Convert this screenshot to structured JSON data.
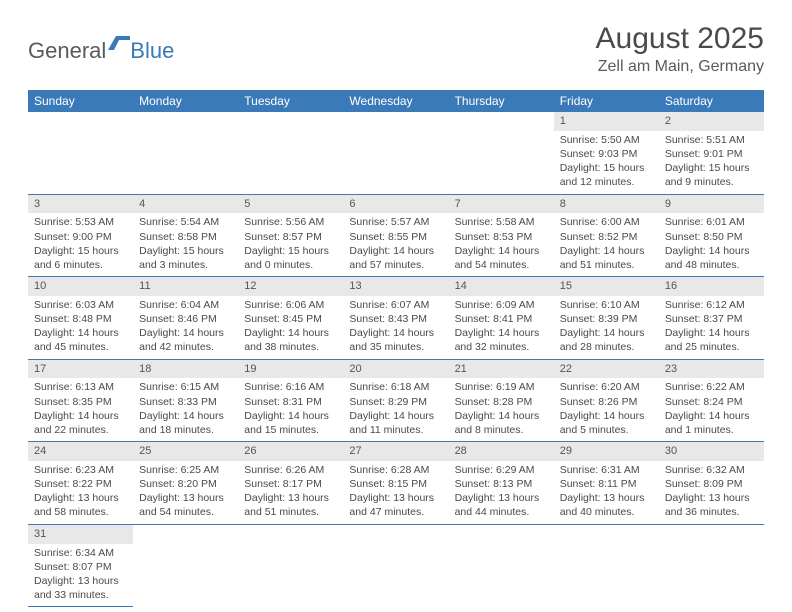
{
  "logo": {
    "text_gray": "General",
    "text_blue": "Blue"
  },
  "title": "August 2025",
  "location": "Zell am Main, Germany",
  "colors": {
    "header_bg": "#3a7ab8",
    "header_text": "#ffffff",
    "daynum_bg": "#e8e8e8",
    "row_border": "#3a7ab8",
    "body_text": "#4a4a4a"
  },
  "weekdays": [
    "Sunday",
    "Monday",
    "Tuesday",
    "Wednesday",
    "Thursday",
    "Friday",
    "Saturday"
  ],
  "first_weekday_index": 5,
  "days": [
    {
      "n": 1,
      "sunrise": "5:50 AM",
      "sunset": "9:03 PM",
      "dl_h": 15,
      "dl_m": 12
    },
    {
      "n": 2,
      "sunrise": "5:51 AM",
      "sunset": "9:01 PM",
      "dl_h": 15,
      "dl_m": 9
    },
    {
      "n": 3,
      "sunrise": "5:53 AM",
      "sunset": "9:00 PM",
      "dl_h": 15,
      "dl_m": 6
    },
    {
      "n": 4,
      "sunrise": "5:54 AM",
      "sunset": "8:58 PM",
      "dl_h": 15,
      "dl_m": 3
    },
    {
      "n": 5,
      "sunrise": "5:56 AM",
      "sunset": "8:57 PM",
      "dl_h": 15,
      "dl_m": 0
    },
    {
      "n": 6,
      "sunrise": "5:57 AM",
      "sunset": "8:55 PM",
      "dl_h": 14,
      "dl_m": 57
    },
    {
      "n": 7,
      "sunrise": "5:58 AM",
      "sunset": "8:53 PM",
      "dl_h": 14,
      "dl_m": 54
    },
    {
      "n": 8,
      "sunrise": "6:00 AM",
      "sunset": "8:52 PM",
      "dl_h": 14,
      "dl_m": 51
    },
    {
      "n": 9,
      "sunrise": "6:01 AM",
      "sunset": "8:50 PM",
      "dl_h": 14,
      "dl_m": 48
    },
    {
      "n": 10,
      "sunrise": "6:03 AM",
      "sunset": "8:48 PM",
      "dl_h": 14,
      "dl_m": 45
    },
    {
      "n": 11,
      "sunrise": "6:04 AM",
      "sunset": "8:46 PM",
      "dl_h": 14,
      "dl_m": 42
    },
    {
      "n": 12,
      "sunrise": "6:06 AM",
      "sunset": "8:45 PM",
      "dl_h": 14,
      "dl_m": 38
    },
    {
      "n": 13,
      "sunrise": "6:07 AM",
      "sunset": "8:43 PM",
      "dl_h": 14,
      "dl_m": 35
    },
    {
      "n": 14,
      "sunrise": "6:09 AM",
      "sunset": "8:41 PM",
      "dl_h": 14,
      "dl_m": 32
    },
    {
      "n": 15,
      "sunrise": "6:10 AM",
      "sunset": "8:39 PM",
      "dl_h": 14,
      "dl_m": 28
    },
    {
      "n": 16,
      "sunrise": "6:12 AM",
      "sunset": "8:37 PM",
      "dl_h": 14,
      "dl_m": 25
    },
    {
      "n": 17,
      "sunrise": "6:13 AM",
      "sunset": "8:35 PM",
      "dl_h": 14,
      "dl_m": 22
    },
    {
      "n": 18,
      "sunrise": "6:15 AM",
      "sunset": "8:33 PM",
      "dl_h": 14,
      "dl_m": 18
    },
    {
      "n": 19,
      "sunrise": "6:16 AM",
      "sunset": "8:31 PM",
      "dl_h": 14,
      "dl_m": 15
    },
    {
      "n": 20,
      "sunrise": "6:18 AM",
      "sunset": "8:29 PM",
      "dl_h": 14,
      "dl_m": 11
    },
    {
      "n": 21,
      "sunrise": "6:19 AM",
      "sunset": "8:28 PM",
      "dl_h": 14,
      "dl_m": 8
    },
    {
      "n": 22,
      "sunrise": "6:20 AM",
      "sunset": "8:26 PM",
      "dl_h": 14,
      "dl_m": 5
    },
    {
      "n": 23,
      "sunrise": "6:22 AM",
      "sunset": "8:24 PM",
      "dl_h": 14,
      "dl_m": 1
    },
    {
      "n": 24,
      "sunrise": "6:23 AM",
      "sunset": "8:22 PM",
      "dl_h": 13,
      "dl_m": 58
    },
    {
      "n": 25,
      "sunrise": "6:25 AM",
      "sunset": "8:20 PM",
      "dl_h": 13,
      "dl_m": 54
    },
    {
      "n": 26,
      "sunrise": "6:26 AM",
      "sunset": "8:17 PM",
      "dl_h": 13,
      "dl_m": 51
    },
    {
      "n": 27,
      "sunrise": "6:28 AM",
      "sunset": "8:15 PM",
      "dl_h": 13,
      "dl_m": 47
    },
    {
      "n": 28,
      "sunrise": "6:29 AM",
      "sunset": "8:13 PM",
      "dl_h": 13,
      "dl_m": 44
    },
    {
      "n": 29,
      "sunrise": "6:31 AM",
      "sunset": "8:11 PM",
      "dl_h": 13,
      "dl_m": 40
    },
    {
      "n": 30,
      "sunrise": "6:32 AM",
      "sunset": "8:09 PM",
      "dl_h": 13,
      "dl_m": 36
    },
    {
      "n": 31,
      "sunrise": "6:34 AM",
      "sunset": "8:07 PM",
      "dl_h": 13,
      "dl_m": 33
    }
  ],
  "labels": {
    "sunrise": "Sunrise:",
    "sunset": "Sunset:",
    "daylight_prefix": "Daylight:",
    "hours_word": "hours",
    "and_word": "and",
    "minutes_word": "minutes."
  }
}
